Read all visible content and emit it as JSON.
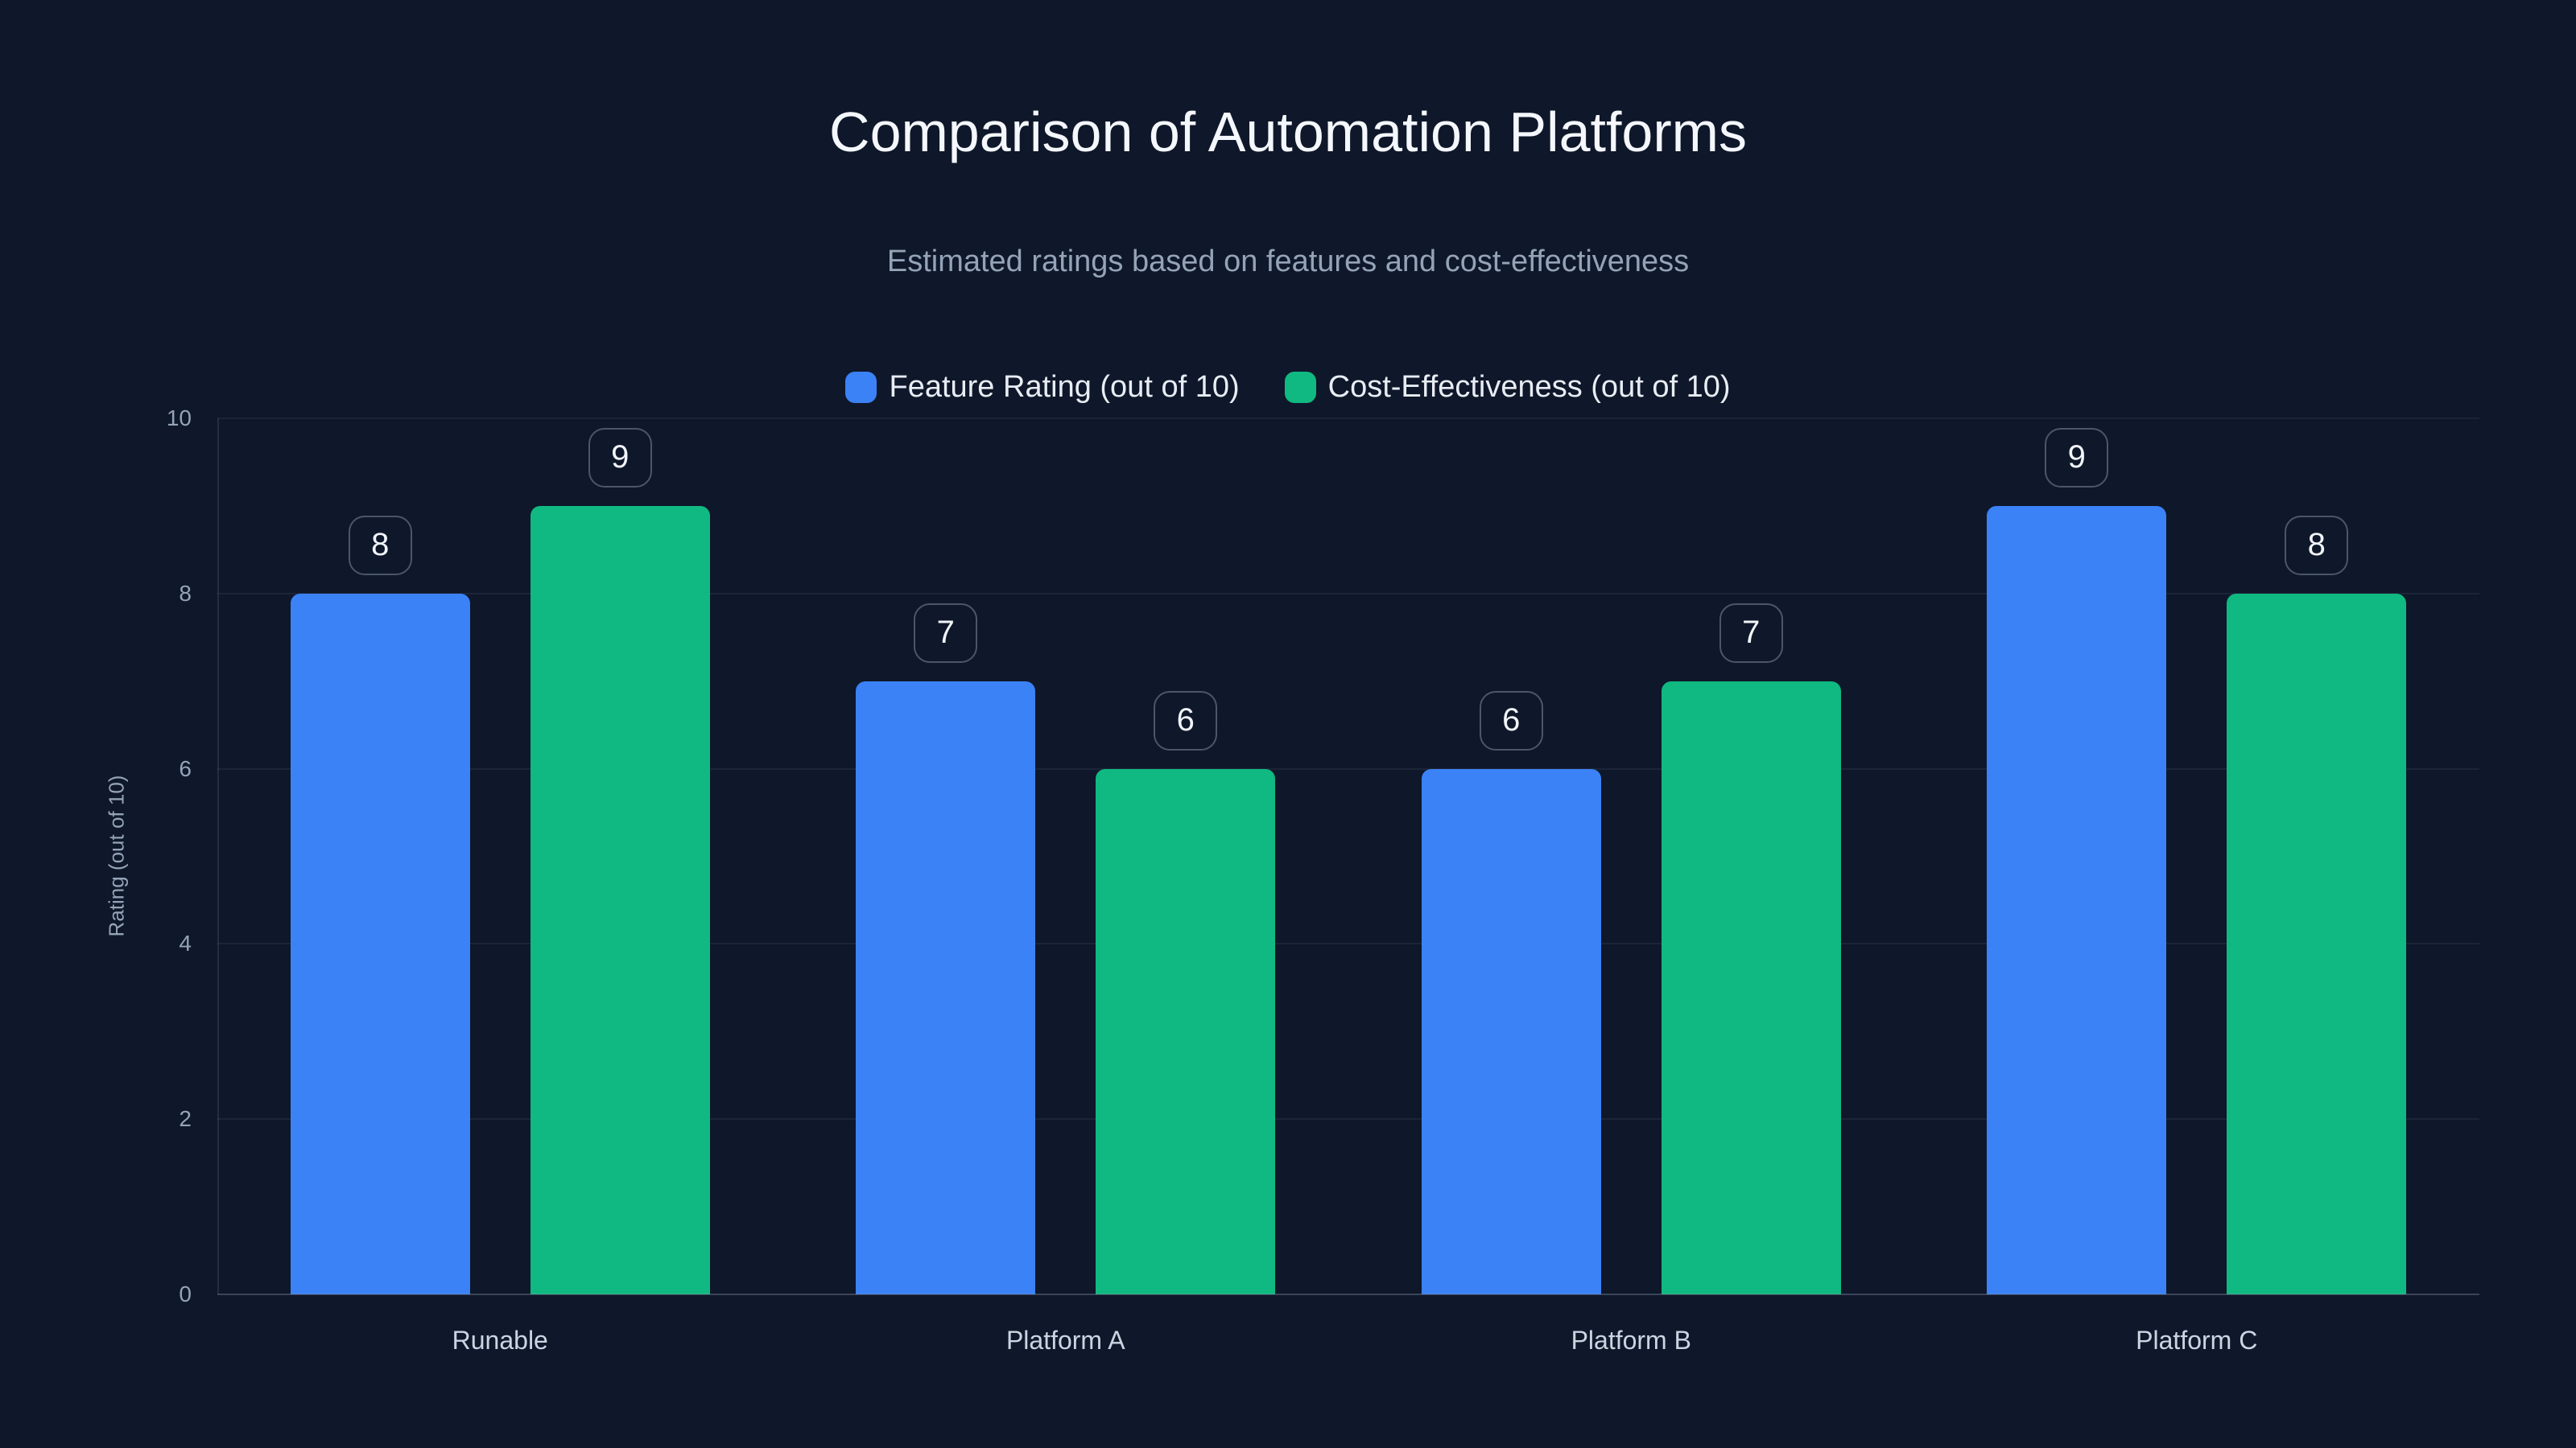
{
  "page": {
    "background_color": "#0f172a"
  },
  "chart_data": {
    "type": "bar",
    "title": "Comparison of Automation Platforms",
    "subtitle": "Estimated ratings based on features and cost-effectiveness",
    "categories": [
      "Runable",
      "Platform A",
      "Platform B",
      "Platform C"
    ],
    "series": [
      {
        "name": "Feature Rating (out of 10)",
        "color": "#3b82f6",
        "values": [
          8,
          7,
          6,
          9
        ]
      },
      {
        "name": "Cost-Effectiveness (out of 10)",
        "color": "#10b981",
        "values": [
          9,
          6,
          7,
          8
        ]
      }
    ],
    "data_labels": [
      {
        "category": "Runable",
        "feature_rating": 8,
        "cost_effectiveness": 9
      },
      {
        "category": "Platform A",
        "feature_rating": 7,
        "cost_effectiveness": 6
      },
      {
        "category": "Platform B",
        "feature_rating": 6,
        "cost_effectiveness": 7
      },
      {
        "category": "Platform C",
        "feature_rating": 9,
        "cost_effectiveness": 8
      }
    ],
    "xlabel": "",
    "ylabel": "Rating (out of 10)",
    "ylim": [
      0,
      10
    ],
    "yticks": [
      0,
      2,
      4,
      6,
      8,
      10
    ],
    "grid": true,
    "legend_position": "top",
    "colors": {
      "title_text": "#f4f7fb",
      "subtitle_text": "#94a3b8",
      "tick_text": "#94a3b8",
      "category_text": "#cbd5e1",
      "badge_text": "#f1f5f9",
      "feature_rating_bar": "#3b82f6",
      "cost_effectiveness_bar": "#10b981"
    }
  }
}
